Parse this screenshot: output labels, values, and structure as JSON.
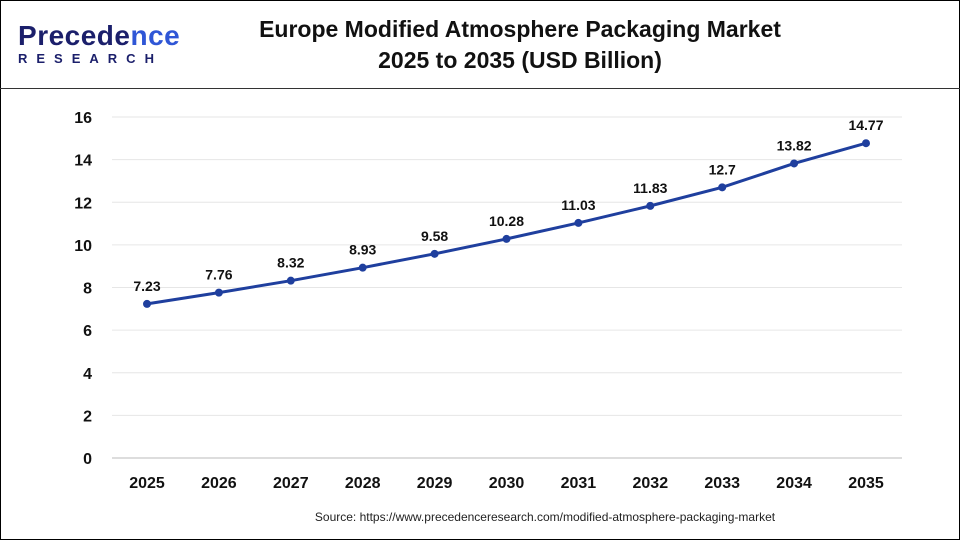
{
  "logo": {
    "line1_a": "P",
    "line1_b": "recede",
    "line1_c": "nce",
    "line2": "RESEARCH",
    "text": "Precedence Research"
  },
  "title_line1": "Europe Modified Atmosphere Packaging Market",
  "title_line2": "2025 to 2035  (USD Billion)",
  "source": "Source: https://www.precedenceresearch.com/modified-atmosphere-packaging-market",
  "chart_data": {
    "type": "line",
    "title": "Europe Modified Atmosphere Packaging Market 2025 to 2035  (USD Billion)",
    "categories": [
      "2025",
      "2026",
      "2027",
      "2028",
      "2029",
      "2030",
      "2031",
      "2032",
      "2033",
      "2034",
      "2035"
    ],
    "values": [
      7.23,
      7.76,
      8.32,
      8.93,
      9.58,
      10.28,
      11.03,
      11.83,
      12.7,
      13.82,
      14.77
    ],
    "data_labels": [
      "7.23",
      "7.76",
      "8.32",
      "8.93",
      "9.58",
      "10.28",
      "11.03",
      "11.83",
      "12.7",
      "13.82",
      "14.77"
    ],
    "ylim": [
      0,
      16
    ],
    "yticks": [
      "0",
      "2",
      "4",
      "6",
      "8",
      "10",
      "12",
      "14",
      "16"
    ],
    "grid": true,
    "line_color": "#1f3f9e",
    "xlabel": "",
    "ylabel": ""
  }
}
